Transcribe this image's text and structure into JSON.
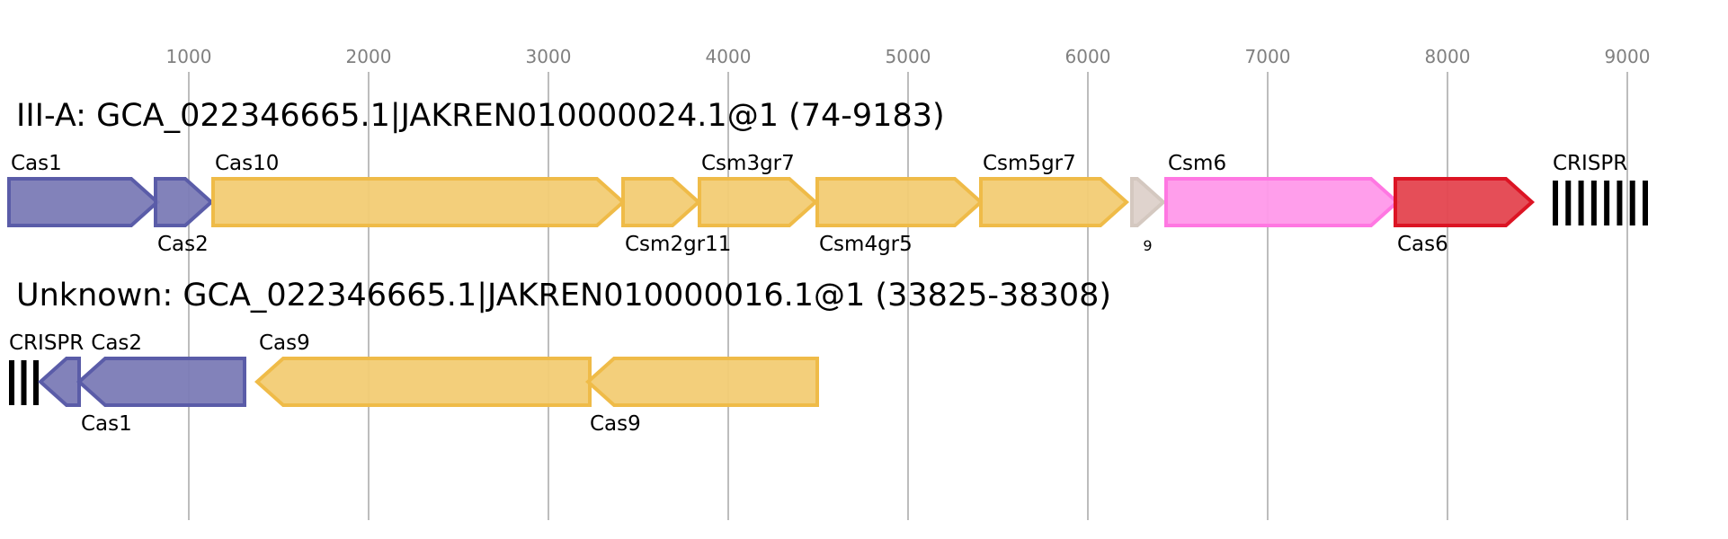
{
  "axis": {
    "ticks": [
      "1000",
      "2000",
      "3000",
      "4000",
      "5000",
      "6000",
      "7000",
      "8000",
      "9000"
    ],
    "tick_values": [
      1000,
      2000,
      3000,
      4000,
      5000,
      6000,
      7000,
      8000,
      9000
    ]
  },
  "colors": {
    "blue": {
      "fill": "#7b7bb6",
      "stroke": "#5a5ca8"
    },
    "yellow": {
      "fill": "#f2cc74",
      "stroke": "#efbb48"
    },
    "pink": {
      "fill": "#ff99ea",
      "stroke": "#ff77e2"
    },
    "red": {
      "fill": "#e4444f",
      "stroke": "#dc1424"
    },
    "gray": {
      "fill": "#ddd1ca",
      "stroke": "#d4c8c0"
    }
  },
  "clusters": [
    {
      "title": "III-A: GCA_022346665.1|JAKREN010000024.1@1 (74-9183)",
      "genes": [
        {
          "label": "Cas1",
          "start": 0,
          "end": 825,
          "strand": "+",
          "color": "blue",
          "label_pos": "above"
        },
        {
          "label": "Cas2",
          "start": 815,
          "end": 1125,
          "strand": "+",
          "color": "blue",
          "label_pos": "below"
        },
        {
          "label": "Cas10",
          "start": 1135,
          "end": 3415,
          "strand": "+",
          "color": "yellow",
          "label_pos": "above"
        },
        {
          "label": "Csm2gr11",
          "start": 3415,
          "end": 3835,
          "strand": "+",
          "color": "yellow",
          "label_pos": "below"
        },
        {
          "label": "Csm3gr7",
          "start": 3840,
          "end": 4485,
          "strand": "+",
          "color": "yellow",
          "label_pos": "above"
        },
        {
          "label": "Csm4gr5",
          "start": 4495,
          "end": 5405,
          "strand": "+",
          "color": "yellow",
          "label_pos": "below"
        },
        {
          "label": "Csm5gr7",
          "start": 5405,
          "end": 6215,
          "strand": "+",
          "color": "yellow",
          "label_pos": "above"
        },
        {
          "label": "9",
          "start": 6245,
          "end": 6420,
          "strand": "+",
          "color": "gray",
          "label_pos": "below",
          "small": true
        },
        {
          "label": "Csm6",
          "start": 6435,
          "end": 7720,
          "strand": "+",
          "color": "pink",
          "label_pos": "above"
        },
        {
          "label": "Cas6",
          "start": 7710,
          "end": 8470,
          "strand": "+",
          "color": "red",
          "label_pos": "below"
        }
      ],
      "crispr": {
        "label": "CRISPR",
        "start": 8585,
        "end": 9115,
        "repeats": 8
      }
    },
    {
      "title": "Unknown: GCA_022346665.1|JAKREN010000016.1@1 (33825-38308)",
      "genes": [
        {
          "label": "Cas2",
          "start": 175,
          "end": 390,
          "strand": "-",
          "color": "blue",
          "label_pos": "above"
        },
        {
          "label": "Cas1",
          "start": 390,
          "end": 1310,
          "strand": "-",
          "color": "blue",
          "label_pos": "below"
        },
        {
          "label": "Cas9",
          "start": 1380,
          "end": 3230,
          "strand": "-",
          "color": "yellow",
          "label_pos": "above"
        },
        {
          "label": "Cas9",
          "start": 3220,
          "end": 4495,
          "strand": "-",
          "color": "yellow",
          "label_pos": "below"
        }
      ],
      "crispr": {
        "label": "CRISPR",
        "start": 0,
        "end": 165,
        "repeats": 3
      }
    }
  ]
}
